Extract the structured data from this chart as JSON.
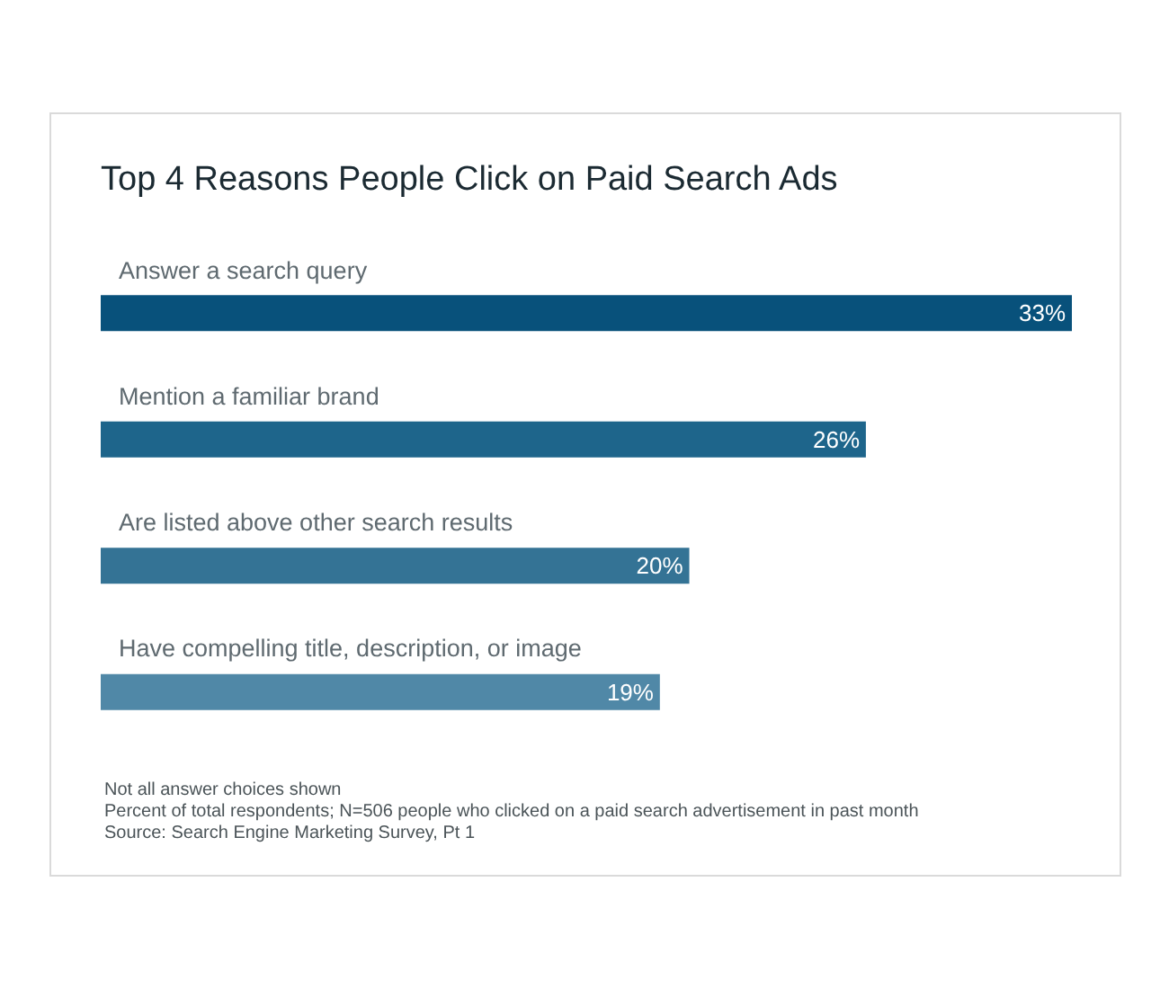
{
  "chart_data": {
    "type": "bar",
    "orientation": "horizontal",
    "title": "Top 4 Reasons People Click on Paid Search Ads",
    "categories": [
      "Answer a search query",
      "Mention a familiar brand",
      "Are listed above other search results",
      "Have compelling title, description, or image"
    ],
    "values": [
      33,
      26,
      20,
      19
    ],
    "value_labels": [
      "33%",
      "26%",
      "20%",
      "19%"
    ],
    "colors": [
      "#08517b",
      "#1e658b",
      "#347395",
      "#5088a7"
    ],
    "annotations": [
      "Not all answer choices shown",
      "Percent of total respondents; N=506 people who clicked on a paid search advertisement in past month",
      "Source: Search Engine Marketing Survey, Pt 1"
    ]
  }
}
